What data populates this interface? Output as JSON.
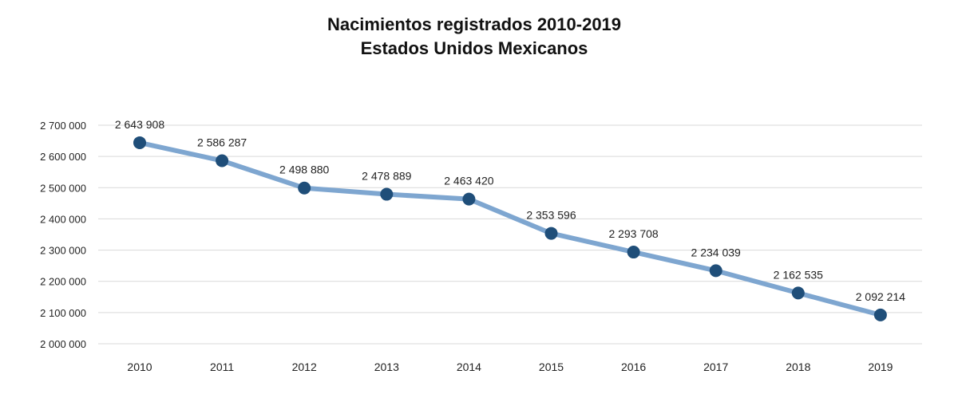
{
  "chart_data": {
    "type": "line",
    "title": "Nacimientos registrados 2010-2019",
    "subtitle": "Estados Unidos Mexicanos",
    "xlabel": "",
    "ylabel": "",
    "categories": [
      "2010",
      "2011",
      "2012",
      "2013",
      "2014",
      "2015",
      "2016",
      "2017",
      "2018",
      "2019"
    ],
    "values": [
      2643908,
      2586287,
      2498880,
      2478889,
      2463420,
      2353596,
      2293708,
      2234039,
      2162535,
      2092214
    ],
    "data_labels": [
      "2 643 908",
      "2 586 287",
      "2 498 880",
      "2 478 889",
      "2 463 420",
      "2 353 596",
      "2 293 708",
      "2 234 039",
      "2 162 535",
      "2 092 214"
    ],
    "ylim": [
      2000000,
      2700000
    ],
    "yticks": [
      2000000,
      2100000,
      2200000,
      2300000,
      2400000,
      2500000,
      2600000,
      2700000
    ],
    "ytick_labels": [
      "2 000 000",
      "2 100 000",
      "2 200 000",
      "2 300 000",
      "2 400 000",
      "2 500 000",
      "2 600 000",
      "2 700 000"
    ],
    "grid": true,
    "legend": "none",
    "colors": {
      "line": "#7ea6d0",
      "marker": "#1f4e79",
      "grid": "#d9d9d9"
    }
  }
}
